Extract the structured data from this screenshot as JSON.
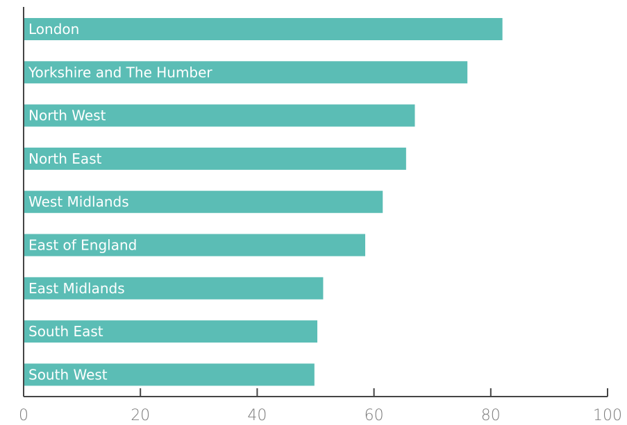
{
  "chart_data": {
    "type": "bar",
    "orientation": "horizontal",
    "categories": [
      "London",
      "Yorkshire and The Humber",
      "North West",
      "North East",
      "West Midlands",
      "East of England",
      "East Midlands",
      "South East",
      "South West"
    ],
    "values": [
      82,
      76,
      67,
      65.5,
      61.5,
      58.5,
      51.3,
      50.3,
      49.8
    ],
    "xlim": [
      0,
      100
    ],
    "xticks": [
      0,
      20,
      40,
      60,
      80,
      100
    ],
    "title": "",
    "xlabel": "",
    "ylabel": "",
    "grid": false,
    "legend": "none",
    "bar_color": "#5bbdb5",
    "label_color": "#ffffff",
    "axis_color": "#444444",
    "tick_label_color": "#7a7a7a"
  }
}
